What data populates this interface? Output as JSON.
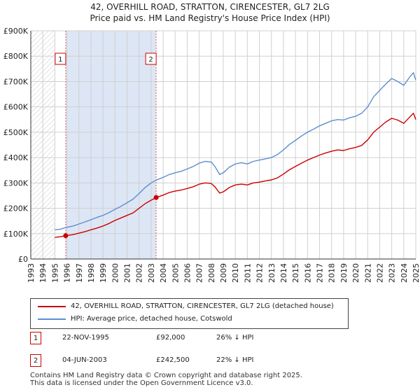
{
  "header": {
    "line1": "42, OVERHILL ROAD, STRATTON, CIRENCESTER, GL7 2LG",
    "line2": "Price paid vs. HM Land Registry's House Price Index (HPI)"
  },
  "colors": {
    "property_line": "#cc0000",
    "hpi_line": "#5b8fd0",
    "shade": "#dde6f5",
    "grid": "#d0d0d0",
    "vline": "#e06060"
  },
  "chart_data": {
    "type": "line",
    "title": "42, OVERHILL ROAD, STRATTON, CIRENCESTER, GL7 2LG",
    "subtitle": "Price paid vs. HM Land Registry's House Price Index (HPI)",
    "xlim": [
      1993,
      2025
    ],
    "ylim": [
      0,
      900000
    ],
    "x_ticks": [
      "1993",
      "1994",
      "1995",
      "1996",
      "1997",
      "1998",
      "1999",
      "2000",
      "2001",
      "2002",
      "2003",
      "2004",
      "2005",
      "2006",
      "2007",
      "2008",
      "2009",
      "2010",
      "2011",
      "2012",
      "2013",
      "2014",
      "2015",
      "2016",
      "2017",
      "2018",
      "2019",
      "2020",
      "2021",
      "2022",
      "2023",
      "2024",
      "2025"
    ],
    "y_ticks": [
      {
        "value": 0,
        "label": "£0"
      },
      {
        "value": 100000,
        "label": "£100K"
      },
      {
        "value": 200000,
        "label": "£200K"
      },
      {
        "value": 300000,
        "label": "£300K"
      },
      {
        "value": 400000,
        "label": "£400K"
      },
      {
        "value": 500000,
        "label": "£500K"
      },
      {
        "value": 600000,
        "label": "£600K"
      },
      {
        "value": 700000,
        "label": "£700K"
      },
      {
        "value": 800000,
        "label": "£800K"
      },
      {
        "value": 900000,
        "label": "£900K"
      }
    ],
    "grid": true,
    "hatched_range": [
      1993,
      1995
    ],
    "shaded_range": [
      1995.9,
      2003.42
    ],
    "series": [
      {
        "name": "42, OVERHILL ROAD, STRATTON, CIRENCESTER, GL7 2LG (detached house)",
        "color": "#cc0000",
        "x": [
          1995.0,
          1995.5,
          1995.9,
          1996.5,
          1997.0,
          1997.5,
          1998.0,
          1998.5,
          1999.0,
          1999.5,
          2000.0,
          2000.5,
          2001.0,
          2001.5,
          2002.0,
          2002.5,
          2003.0,
          2003.42,
          2004.0,
          2004.5,
          2005.0,
          2005.5,
          2006.0,
          2006.5,
          2007.0,
          2007.5,
          2008.0,
          2008.3,
          2008.7,
          2009.0,
          2009.5,
          2010.0,
          2010.5,
          2011.0,
          2011.5,
          2012.0,
          2012.5,
          2013.0,
          2013.5,
          2014.0,
          2014.5,
          2015.0,
          2015.5,
          2016.0,
          2016.5,
          2017.0,
          2017.5,
          2018.0,
          2018.5,
          2019.0,
          2019.5,
          2020.0,
          2020.5,
          2021.0,
          2021.5,
          2022.0,
          2022.5,
          2023.0,
          2023.5,
          2024.0,
          2024.5,
          2024.8,
          2025.0
        ],
        "y": [
          85000,
          88000,
          92000,
          96000,
          102000,
          108000,
          115000,
          122000,
          130000,
          140000,
          152000,
          162000,
          172000,
          182000,
          200000,
          218000,
          232000,
          242500,
          252000,
          262000,
          268000,
          272000,
          278000,
          285000,
          295000,
          300000,
          298000,
          285000,
          260000,
          265000,
          282000,
          292000,
          295000,
          292000,
          300000,
          303000,
          308000,
          312000,
          320000,
          335000,
          352000,
          365000,
          378000,
          390000,
          400000,
          410000,
          418000,
          425000,
          430000,
          428000,
          435000,
          440000,
          448000,
          470000,
          500000,
          520000,
          540000,
          555000,
          548000,
          535000,
          560000,
          575000,
          550000
        ]
      },
      {
        "name": "HPI: Average price, detached house, Cotswold",
        "color": "#5b8fd0",
        "x": [
          1995.0,
          1995.5,
          1995.9,
          1996.5,
          1997.0,
          1997.5,
          1998.0,
          1998.5,
          1999.0,
          1999.5,
          2000.0,
          2000.5,
          2001.0,
          2001.5,
          2002.0,
          2002.5,
          2003.0,
          2003.42,
          2004.0,
          2004.5,
          2005.0,
          2005.5,
          2006.0,
          2006.5,
          2007.0,
          2007.5,
          2008.0,
          2008.3,
          2008.7,
          2009.0,
          2009.5,
          2010.0,
          2010.5,
          2011.0,
          2011.5,
          2012.0,
          2012.5,
          2013.0,
          2013.5,
          2014.0,
          2014.5,
          2015.0,
          2015.5,
          2016.0,
          2016.5,
          2017.0,
          2017.5,
          2018.0,
          2018.5,
          2019.0,
          2019.5,
          2020.0,
          2020.5,
          2021.0,
          2021.5,
          2022.0,
          2022.5,
          2023.0,
          2023.5,
          2024.0,
          2024.5,
          2024.8,
          2025.0
        ],
        "y": [
          115000,
          118000,
          124000,
          130000,
          138000,
          146000,
          155000,
          164000,
          172000,
          183000,
          196000,
          208000,
          222000,
          236000,
          258000,
          282000,
          300000,
          311000,
          322000,
          333000,
          340000,
          346000,
          355000,
          365000,
          378000,
          385000,
          382000,
          365000,
          333000,
          340000,
          362000,
          375000,
          380000,
          375000,
          385000,
          390000,
          395000,
          400000,
          412000,
          430000,
          452000,
          468000,
          485000,
          500000,
          512000,
          525000,
          535000,
          545000,
          550000,
          548000,
          557000,
          563000,
          575000,
          600000,
          640000,
          665000,
          690000,
          712000,
          700000,
          685000,
          718000,
          735000,
          705000
        ]
      }
    ],
    "sales": [
      {
        "label": "1",
        "x": 1995.9,
        "y": 92000
      },
      {
        "label": "2",
        "x": 2003.42,
        "y": 242500
      }
    ]
  },
  "legend": {
    "property_label": "42, OVERHILL ROAD, STRATTON, CIRENCESTER, GL7 2LG (detached house)",
    "hpi_label": "HPI: Average price, detached house, Cotswold"
  },
  "sales_table": [
    {
      "num": "1",
      "date": "22-NOV-1995",
      "price": "£92,000",
      "hpi": "26% ↓ HPI"
    },
    {
      "num": "2",
      "date": "04-JUN-2003",
      "price": "£242,500",
      "hpi": "22% ↓ HPI"
    }
  ],
  "footer": {
    "line1": "Contains HM Land Registry data © Crown copyright and database right 2025.",
    "line2": "This data is licensed under the Open Government Licence v3.0."
  }
}
